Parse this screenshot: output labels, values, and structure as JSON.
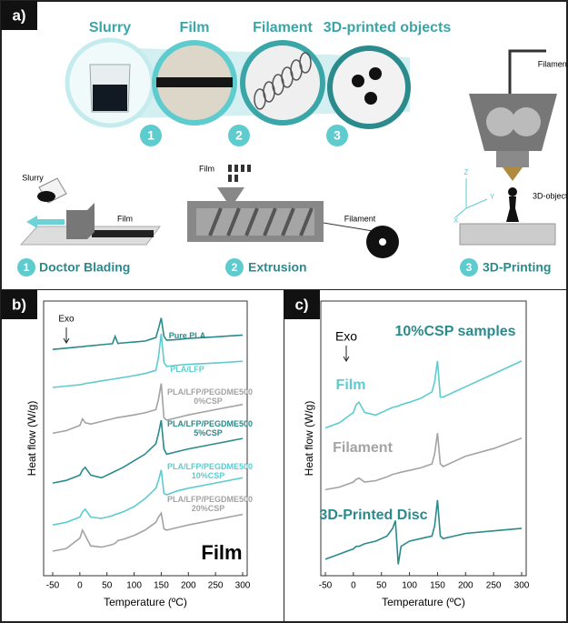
{
  "panel_a": {
    "label": "a)",
    "top_titles": [
      "Slurry",
      "Film",
      "Filament",
      "3D-printed objects"
    ],
    "badges": [
      "1",
      "2",
      "3"
    ],
    "steps": [
      {
        "number": "1",
        "name": "Doctor Blading",
        "parts": [
          "Slurry",
          "Film"
        ]
      },
      {
        "number": "2",
        "name": "Extrusion",
        "parts": [
          "Film",
          "Filament"
        ]
      },
      {
        "number": "3",
        "name": "3D-Printing",
        "parts": [
          "Filament",
          "3D-object",
          "X",
          "Y",
          "Z"
        ]
      }
    ]
  },
  "chart_data": [
    {
      "type": "line",
      "panel_label": "b)",
      "annotation": "Film",
      "exo": "Exo",
      "xlabel": "Temperature (ºC)",
      "ylabel": "Heat flow (W/g)",
      "xlim": [
        -50,
        300
      ],
      "xticks": [
        -50,
        0,
        50,
        100,
        150,
        200,
        250,
        300
      ],
      "ylim": [
        0,
        100
      ],
      "x": [
        -50,
        -25,
        0,
        5,
        10,
        20,
        40,
        60,
        65,
        70,
        80,
        100,
        120,
        140,
        145,
        150,
        155,
        160,
        180,
        200,
        250,
        300
      ],
      "series": [
        {
          "name": "Pure PLA",
          "color": "#2a8a8c",
          "values": [
            85,
            85.5,
            86,
            86,
            86.2,
            86.4,
            86.8,
            87.2,
            90,
            87.3,
            87.5,
            87.8,
            88.2,
            89.5,
            93,
            97,
            90,
            88.5,
            88.8,
            89.2,
            89.8,
            90.5
          ]
        },
        {
          "name": "PLA/LFP",
          "color": "#5ecbcf",
          "values": [
            70.5,
            71,
            71.5,
            71.7,
            72,
            72.3,
            73,
            73.6,
            73.8,
            74,
            74.3,
            75,
            75.8,
            77,
            82,
            91,
            80,
            78.5,
            79,
            79.3,
            79.8,
            80.5
          ]
        },
        {
          "name": "PLA/LFP/PEGDME500 0%CSP",
          "color": "#a3a3a3",
          "values": [
            53,
            54,
            56,
            58.5,
            57,
            56.5,
            57.5,
            58.5,
            58.8,
            59,
            59.3,
            60,
            60.8,
            62,
            66,
            72,
            59,
            58,
            59,
            60,
            62,
            64
          ]
        },
        {
          "name": "PLA/LFP/PEGDME500 5%CSP",
          "color": "#2a8a8c",
          "values": [
            34,
            35,
            37,
            39,
            40,
            37,
            36,
            38,
            38.5,
            39,
            40,
            42.5,
            45,
            49,
            53,
            58,
            47,
            45,
            46,
            47,
            49,
            51
          ]
        },
        {
          "name": "PLA/LFP/PEGDME500 10%CSP",
          "color": "#5ecbcf",
          "values": [
            18,
            19,
            21,
            23,
            24,
            21,
            20.5,
            21.5,
            22,
            22.3,
            23,
            25,
            28,
            32,
            35,
            39,
            30,
            29.5,
            31,
            32,
            34,
            36
          ]
        },
        {
          "name": "PLA/LFP/PEGDME500 20%CSP",
          "color": "#a3a3a3",
          "values": [
            8,
            9,
            13,
            16,
            14,
            10,
            9.5,
            10.5,
            11,
            12,
            12.5,
            14,
            16,
            19,
            21,
            22.5,
            16.5,
            16,
            17,
            18,
            20,
            22
          ]
        }
      ]
    },
    {
      "type": "line",
      "panel_label": "c)",
      "title": "10%CSP samples",
      "exo": "Exo",
      "xlabel": "Temperature (ºC)",
      "ylabel": "Heat flow (W/g)",
      "xlim": [
        -50,
        300
      ],
      "xticks": [
        -50,
        0,
        50,
        100,
        150,
        200,
        250,
        300
      ],
      "ylim": [
        0,
        100
      ],
      "x": [
        -50,
        -25,
        0,
        5,
        10,
        20,
        40,
        60,
        70,
        75,
        80,
        85,
        100,
        120,
        140,
        145,
        150,
        155,
        160,
        180,
        200,
        250,
        300
      ],
      "series": [
        {
          "name": "Film",
          "color": "#5ecbcf",
          "values": [
            56,
            58,
            62,
            65,
            66,
            62,
            61,
            63,
            64,
            64.2,
            64.5,
            65,
            66,
            67.5,
            70,
            74,
            82,
            68,
            68,
            70,
            72,
            77,
            82
          ]
        },
        {
          "name": "Filament",
          "color": "#a3a3a3",
          "values": [
            32,
            33,
            35,
            36,
            36.5,
            35,
            35.5,
            37,
            38,
            38.2,
            38.5,
            38.8,
            39.5,
            40.5,
            42,
            46,
            54,
            42,
            41,
            43,
            45,
            48,
            52
          ]
        },
        {
          "name": "3D-Printed Disc",
          "color": "#2a8a8c",
          "values": [
            5,
            7,
            9,
            10,
            10,
            11,
            12,
            14,
            17,
            20,
            3,
            10,
            12,
            13,
            14,
            18,
            28,
            14,
            13,
            14,
            15,
            16,
            17
          ]
        }
      ]
    }
  ]
}
